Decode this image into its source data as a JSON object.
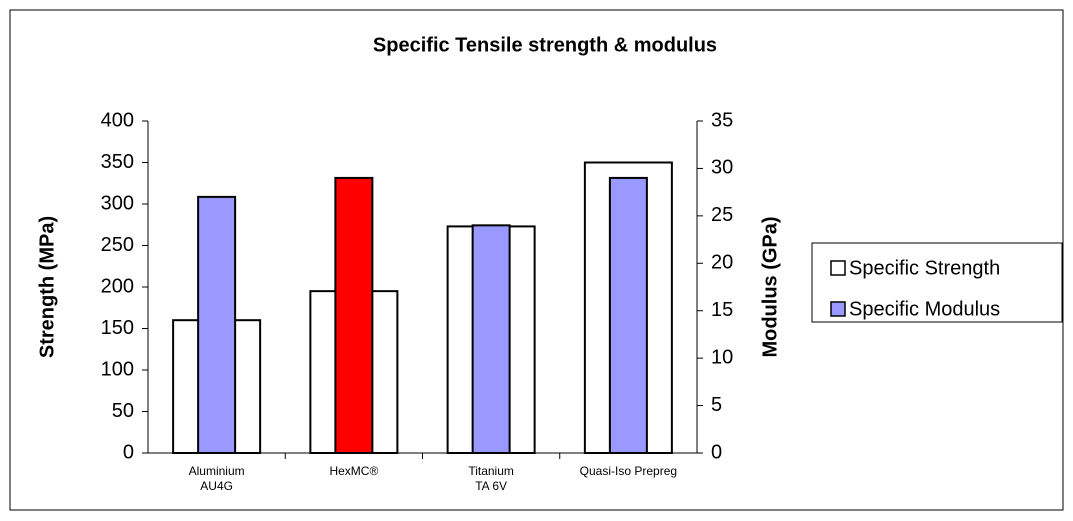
{
  "chart_data": {
    "type": "bar",
    "title": "Specific Tensile strength & modulus",
    "y_label": "Strength (MPa)",
    "y2_label": "Modulus (GPa)",
    "categories": [
      "Aluminium\nAU4G",
      "HexMC®",
      "Titanium\nTA 6V",
      "Quasi-Iso Prepreg"
    ],
    "series": [
      {
        "name": "Specific Strength",
        "color": "#ffffff",
        "values": [
          160,
          195,
          273,
          350
        ]
      },
      {
        "name": "Specific Modulus",
        "color": "#9999ff",
        "colors": [
          "#9999ff",
          "#ff0000",
          "#9999ff",
          "#9999ff"
        ],
        "values": [
          27,
          29,
          24,
          29
        ],
        "axis": "y2"
      }
    ],
    "ylim": [
      0,
      400
    ],
    "yticks": [
      0,
      50,
      100,
      150,
      200,
      250,
      300,
      350,
      400
    ],
    "y2lim": [
      0,
      35
    ],
    "y2ticks": [
      0,
      5,
      10,
      15,
      20,
      25,
      30,
      35
    ],
    "legend": "right"
  }
}
